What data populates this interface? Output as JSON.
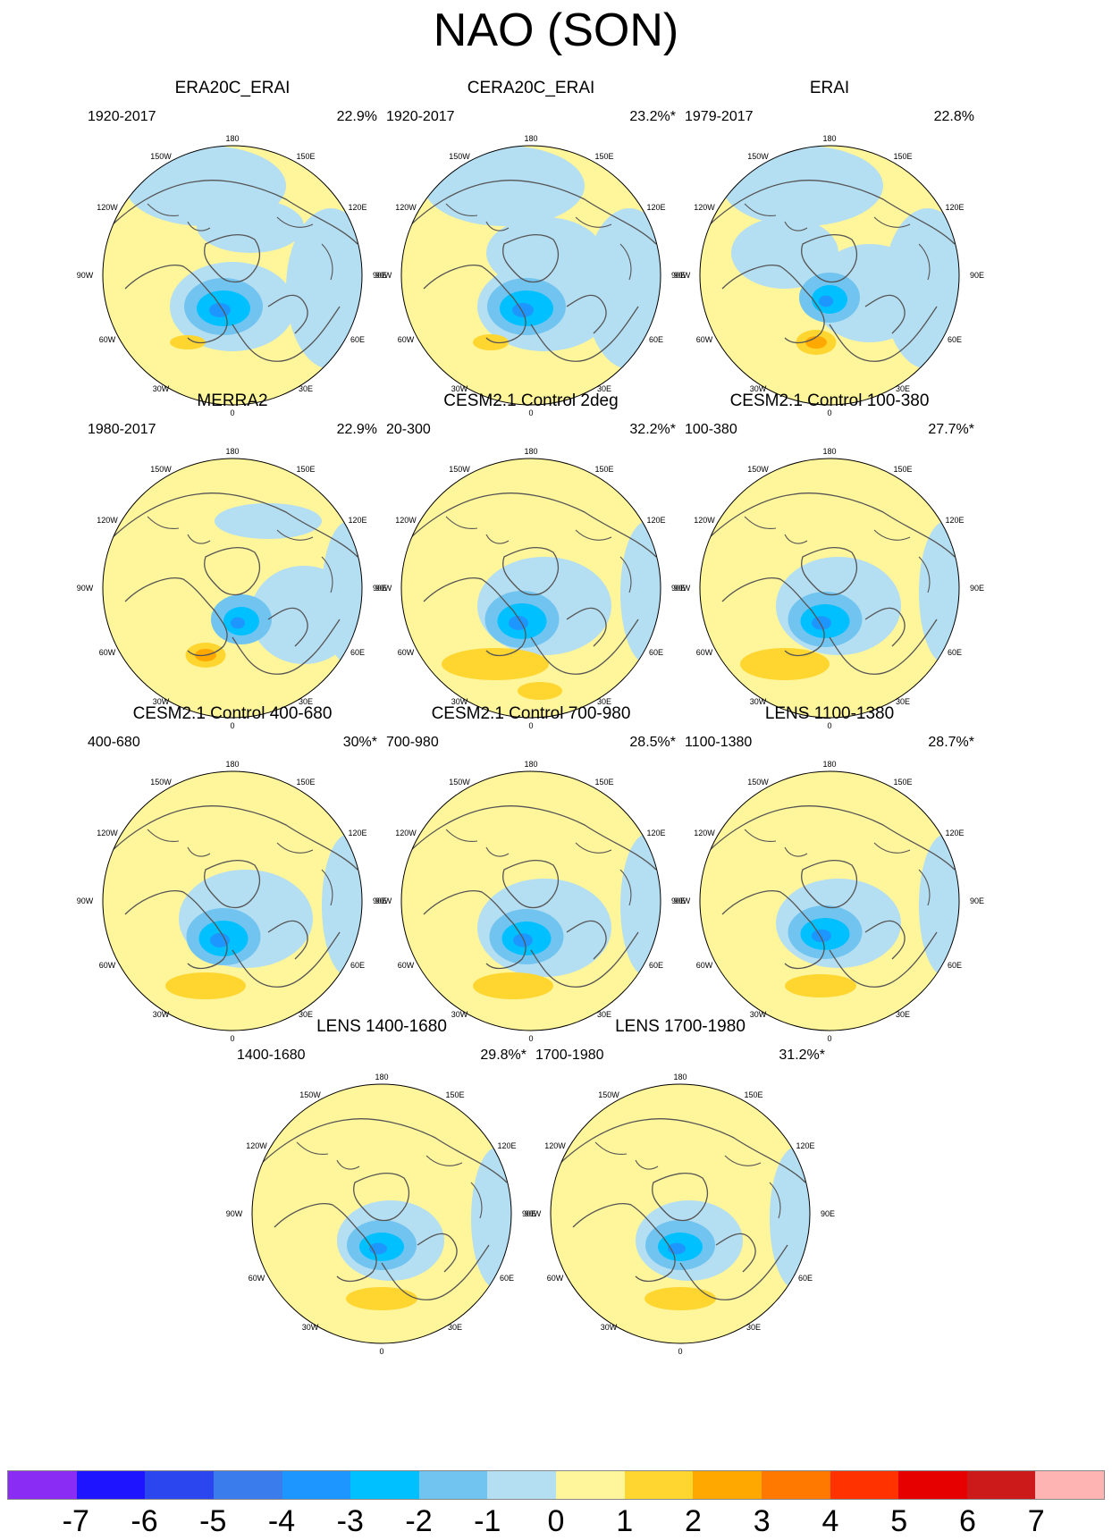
{
  "title": "NAO (SON)",
  "colors": {
    "positive_1": "#fff59a",
    "positive_2": "#ffd530",
    "positive_3": "#ffa800",
    "negative_1": "#b4def2",
    "negative_2": "#72c4f0",
    "negative_3": "#00c0ff",
    "negative_4": "#1e96ff",
    "coast": "#555555"
  },
  "colorbar": {
    "colors": [
      "#8a2cf4",
      "#1e14ff",
      "#2b46ee",
      "#3a7cec",
      "#1e96ff",
      "#00c0ff",
      "#72c4f0",
      "#b4def2",
      "#fff59a",
      "#ffd530",
      "#ffa800",
      "#ff7800",
      "#ff3200",
      "#e60000",
      "#cc1a1a",
      "#ffb4b4"
    ],
    "labels": [
      "-7",
      "-6",
      "-5",
      "-4",
      "-3",
      "-2",
      "-1",
      "0",
      "1",
      "2",
      "3",
      "4",
      "5",
      "6",
      "7"
    ]
  },
  "longitude_labels": {
    "top": "180",
    "bottom": "0",
    "left": "90W",
    "right": "90E",
    "upper_left_1": "150W",
    "upper_left_2": "120W",
    "lower_left_1": "60W",
    "lower_left_2": "30W",
    "upper_right_1": "150E",
    "upper_right_2": "120E",
    "lower_right_1": "60E",
    "lower_right_2": "30E"
  },
  "panels": [
    {
      "title": "ERA20C_ERAI",
      "period": "1920-2017",
      "variance": "22.9%"
    },
    {
      "title": "CERA20C_ERAI",
      "period": "1920-2017",
      "variance": "23.2%*"
    },
    {
      "title": "ERAI",
      "period": "1979-2017",
      "variance": "22.8%"
    },
    {
      "title": "MERRA2",
      "period": "1980-2017",
      "variance": "22.9%"
    },
    {
      "title": "CESM2.1 Control 2deg",
      "period": "20-300",
      "variance": "32.2%*"
    },
    {
      "title": "CESM2.1 Control 100-380",
      "period": "100-380",
      "variance": "27.7%*"
    },
    {
      "title": "CESM2.1 Control 400-680",
      "period": "400-680",
      "variance": "30%*"
    },
    {
      "title": "CESM2.1 Control 700-980",
      "period": "700-980",
      "variance": "28.5%*"
    },
    {
      "title": "LENS 1100-1380",
      "period": "1100-1380",
      "variance": "28.7%*"
    },
    {
      "title": "LENS 1400-1680",
      "period": "1400-1680",
      "variance": "29.8%*"
    },
    {
      "title": "LENS 1700-1980",
      "period": "1700-1980",
      "variance": "31.2%*"
    }
  ]
}
